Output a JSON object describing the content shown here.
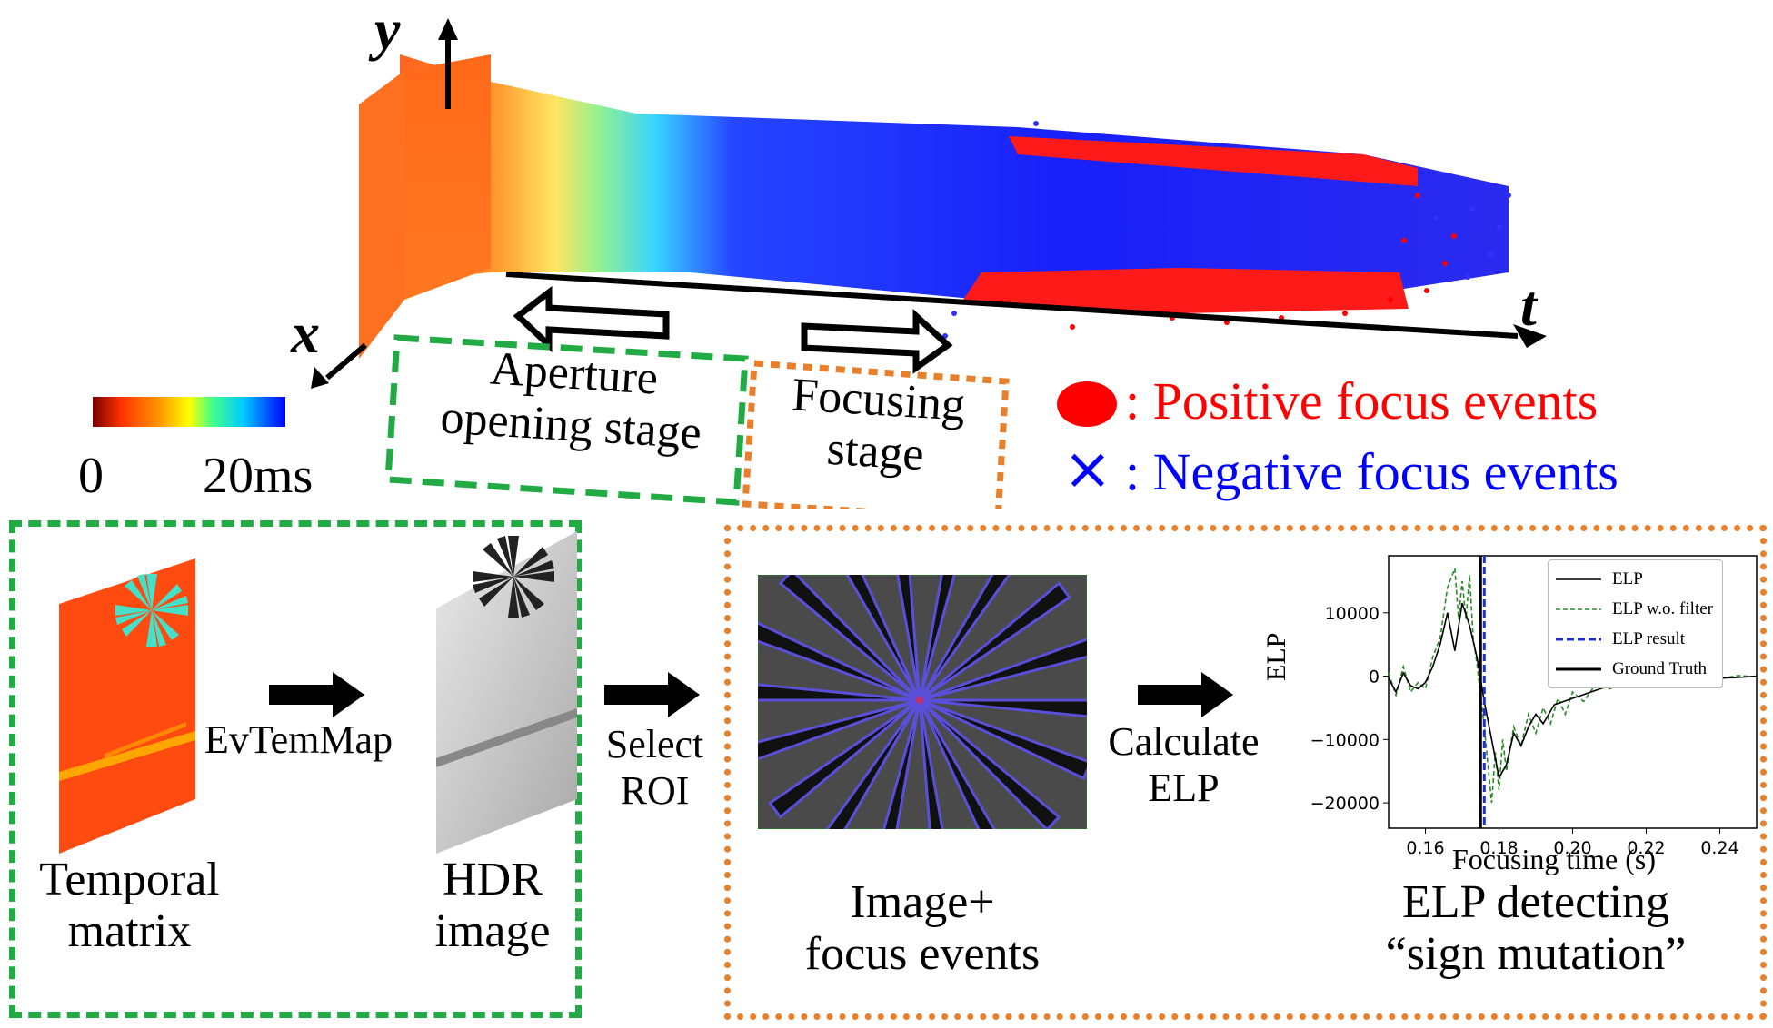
{
  "top_plot": {
    "axis_y": "y",
    "axis_x": "x",
    "axis_t": "t",
    "colorbar_min": "0",
    "colorbar_max": "20ms",
    "colorbar_colors": [
      "#7a0000",
      "#ff3300",
      "#ff9900",
      "#ffff00",
      "#44ff88",
      "#00ccff",
      "#0000ff"
    ],
    "aperture_label_line1": "Aperture",
    "aperture_label_line2": "opening stage",
    "focusing_label_line1": "Focusing",
    "focusing_label_line2": "stage",
    "legend_positive": ": Positive focus events",
    "legend_negative": ": Negative focus events",
    "positive_color": "#ff0000",
    "negative_color": "#0000ff"
  },
  "pipeline": {
    "temporal_matrix_label_line1": "Temporal",
    "temporal_matrix_label_line2": "matrix",
    "evtemmap_label": "EvTemMap",
    "hdr_label_line1": "HDR",
    "hdr_label_line2": "image",
    "select_roi_line1": "Select",
    "select_roi_line2": "ROI",
    "image_focus_line1": "Image+",
    "image_focus_line2": "focus events",
    "calculate_line1": "Calculate",
    "calculate_line2": "ELP",
    "elp_detect_line1": "ELP detecting",
    "elp_detect_line2": "“sign mutation”",
    "green_box_color": "#22aa44",
    "orange_box_color": "#e87f2a"
  },
  "chart_data": {
    "type": "line",
    "xlabel": "Focusing time (s)",
    "ylabel": "ELP",
    "xlim": [
      0.15,
      0.25
    ],
    "ylim": [
      -24000,
      19000
    ],
    "x_ticks": [
      "0.16",
      "0.18",
      "0.20",
      "0.22",
      "0.24"
    ],
    "y_ticks": [
      "10000",
      "0",
      "−10000",
      "−20000"
    ],
    "ground_truth_x": 0.175,
    "elp_result_x": 0.176,
    "series": [
      {
        "name": "ELP",
        "style": "solid-black",
        "x": [
          0.15,
          0.152,
          0.154,
          0.156,
          0.158,
          0.16,
          0.162,
          0.164,
          0.166,
          0.168,
          0.17,
          0.172,
          0.174,
          0.176,
          0.178,
          0.18,
          0.182,
          0.184,
          0.186,
          0.188,
          0.19,
          0.192,
          0.195,
          0.2,
          0.205,
          0.21,
          0.215,
          0.22,
          0.225,
          0.23,
          0.235,
          0.24,
          0.245,
          0.25
        ],
        "y": [
          -300,
          -2500,
          500,
          -1500,
          -2000,
          -1000,
          1500,
          5000,
          10000,
          4000,
          11500,
          8000,
          3000,
          -4000,
          -10000,
          -16000,
          -14000,
          -9000,
          -11000,
          -8000,
          -6000,
          -7500,
          -4500,
          -3500,
          -2500,
          -1500,
          -1200,
          -800,
          -600,
          -400,
          -400,
          -300,
          -200,
          0
        ]
      },
      {
        "name": "ELP w.o. filter",
        "style": "dashed-green",
        "x": [
          0.15,
          0.152,
          0.154,
          0.156,
          0.158,
          0.16,
          0.162,
          0.164,
          0.166,
          0.168,
          0.169,
          0.17,
          0.171,
          0.172,
          0.173,
          0.174,
          0.175,
          0.176,
          0.177,
          0.178,
          0.179,
          0.18,
          0.181,
          0.182,
          0.184,
          0.186,
          0.188,
          0.19,
          0.192,
          0.194,
          0.196,
          0.198,
          0.2,
          0.203,
          0.206,
          0.21,
          0.215,
          0.22,
          0.225,
          0.23,
          0.235,
          0.24,
          0.245,
          0.25
        ],
        "y": [
          500,
          -3000,
          1500,
          -2500,
          -1000,
          -2000,
          3000,
          6000,
          14000,
          17000,
          9000,
          15000,
          9000,
          16000,
          6000,
          2000,
          -3000,
          -8000,
          -14000,
          -20000,
          -12000,
          -18000,
          -10000,
          -15000,
          -8000,
          -11000,
          -6000,
          -9000,
          -5000,
          -7500,
          -3500,
          -6000,
          -2500,
          -4000,
          -1500,
          -2000,
          -1000,
          -1500,
          -500,
          -700,
          -200,
          -400,
          100,
          -100
        ]
      }
    ]
  }
}
